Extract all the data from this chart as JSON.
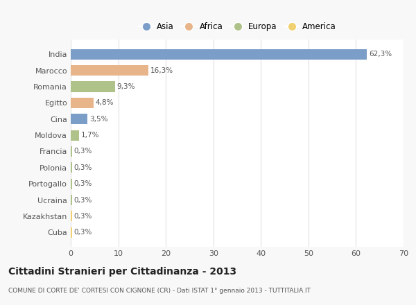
{
  "countries": [
    "India",
    "Marocco",
    "Romania",
    "Egitto",
    "Cina",
    "Moldova",
    "Francia",
    "Polonia",
    "Portogallo",
    "Ucraina",
    "Kazakhstan",
    "Cuba"
  ],
  "values": [
    62.3,
    16.3,
    9.3,
    4.8,
    3.5,
    1.7,
    0.3,
    0.3,
    0.3,
    0.3,
    0.3,
    0.3
  ],
  "labels": [
    "62,3%",
    "16,3%",
    "9,3%",
    "4,8%",
    "3,5%",
    "1,7%",
    "0,3%",
    "0,3%",
    "0,3%",
    "0,3%",
    "0,3%",
    "0,3%"
  ],
  "colors": [
    "#7b9ec9",
    "#e8b48a",
    "#afc28a",
    "#e8b48a",
    "#7b9ec9",
    "#afc28a",
    "#afc28a",
    "#afc28a",
    "#afc28a",
    "#afc28a",
    "#f0d070",
    "#f0d070"
  ],
  "legend_labels": [
    "Asia",
    "Africa",
    "Europa",
    "America"
  ],
  "legend_colors": [
    "#7b9ec9",
    "#e8b48a",
    "#afc28a",
    "#f0d070"
  ],
  "title": "Cittadini Stranieri per Cittadinanza - 2013",
  "subtitle": "COMUNE DI CORTE DE' CORTESI CON CIGNONE (CR) - Dati ISTAT 1° gennaio 2013 - TUTTITALIA.IT",
  "xlim": [
    0,
    70
  ],
  "xticks": [
    0,
    10,
    20,
    30,
    40,
    50,
    60,
    70
  ],
  "bg_color": "#f8f8f8",
  "plot_bg_color": "#ffffff",
  "grid_color": "#e0e0e0",
  "text_color": "#555555"
}
